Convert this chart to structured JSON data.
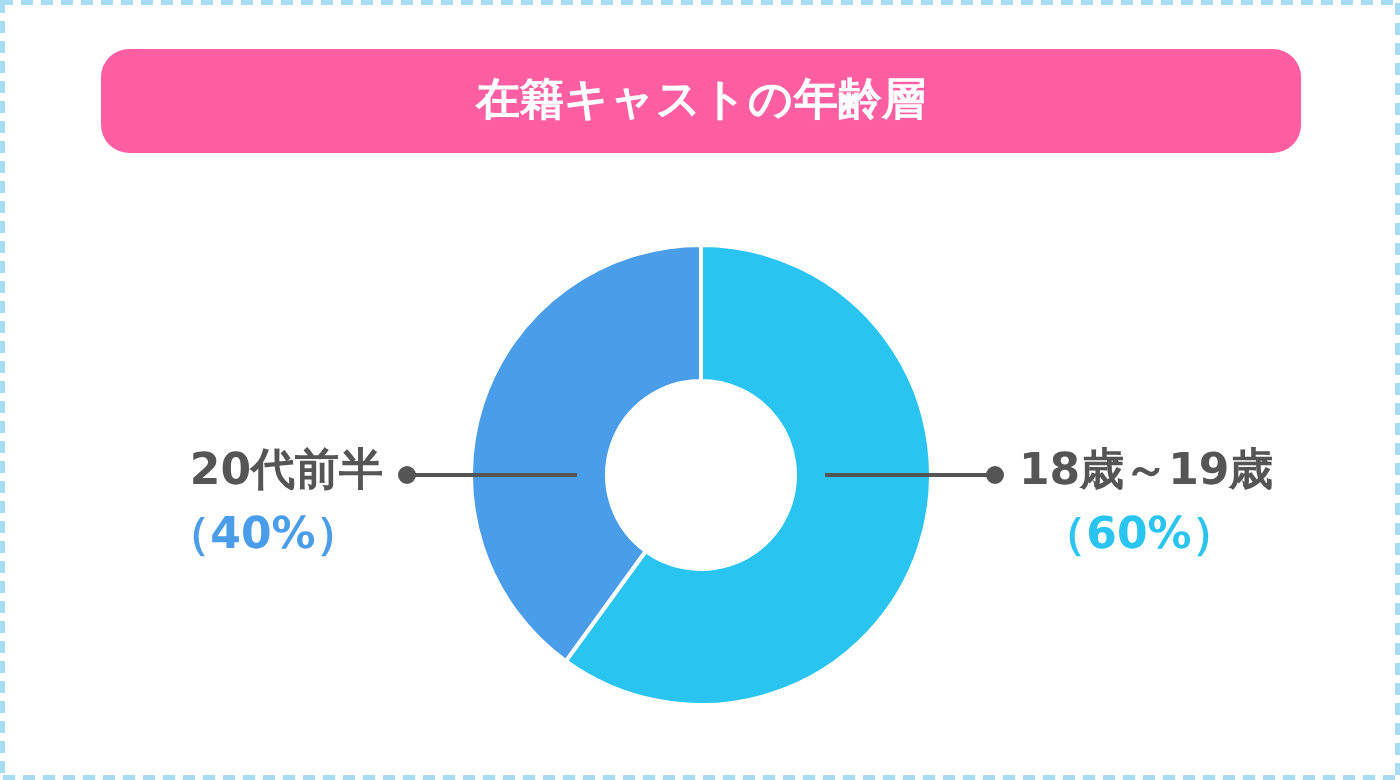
{
  "chart_data": {
    "type": "donut",
    "title": "在籍キャストの年齢層",
    "categories": [
      "18歳～19歳",
      "20代前半"
    ],
    "values": [
      60,
      40
    ],
    "colors": [
      "#29c4f0",
      "#4a9de8"
    ],
    "value_labels": [
      "（60%）",
      "（40%）"
    ]
  }
}
